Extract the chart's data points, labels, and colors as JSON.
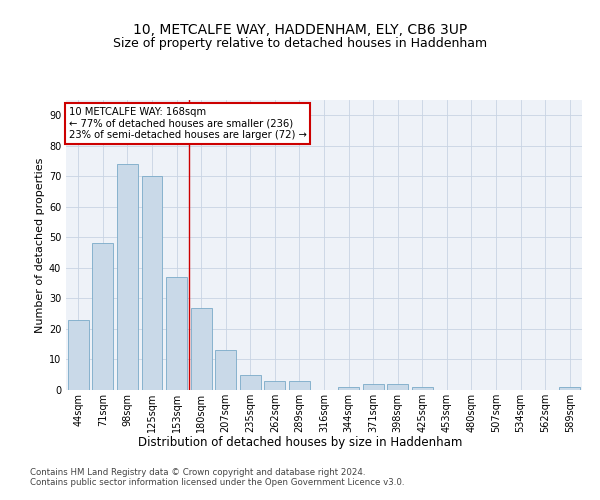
{
  "title1": "10, METCALFE WAY, HADDENHAM, ELY, CB6 3UP",
  "title2": "Size of property relative to detached houses in Haddenham",
  "xlabel": "Distribution of detached houses by size in Haddenham",
  "ylabel": "Number of detached properties",
  "categories": [
    "44sqm",
    "71sqm",
    "98sqm",
    "125sqm",
    "153sqm",
    "180sqm",
    "207sqm",
    "235sqm",
    "262sqm",
    "289sqm",
    "316sqm",
    "344sqm",
    "371sqm",
    "398sqm",
    "425sqm",
    "453sqm",
    "480sqm",
    "507sqm",
    "534sqm",
    "562sqm",
    "589sqm"
  ],
  "values": [
    23,
    48,
    74,
    70,
    37,
    27,
    13,
    5,
    3,
    3,
    0,
    1,
    2,
    2,
    1,
    0,
    0,
    0,
    0,
    0,
    1
  ],
  "bar_color": "#c9d9e8",
  "bar_edge_color": "#7aaac8",
  "vline_x_index": 4.5,
  "vline_color": "#cc0000",
  "annotation_line1": "10 METCALFE WAY: 168sqm",
  "annotation_line2": "← 77% of detached houses are smaller (236)",
  "annotation_line3": "23% of semi-detached houses are larger (72) →",
  "annotation_box_color": "#cc0000",
  "ylim": [
    0,
    95
  ],
  "yticks": [
    0,
    10,
    20,
    30,
    40,
    50,
    60,
    70,
    80,
    90
  ],
  "grid_color": "#c8d4e3",
  "background_color": "#eef2f8",
  "footer1": "Contains HM Land Registry data © Crown copyright and database right 2024.",
  "footer2": "Contains public sector information licensed under the Open Government Licence v3.0.",
  "title1_fontsize": 10,
  "title2_fontsize": 9,
  "tick_fontsize": 7,
  "xlabel_fontsize": 8.5,
  "ylabel_fontsize": 8
}
